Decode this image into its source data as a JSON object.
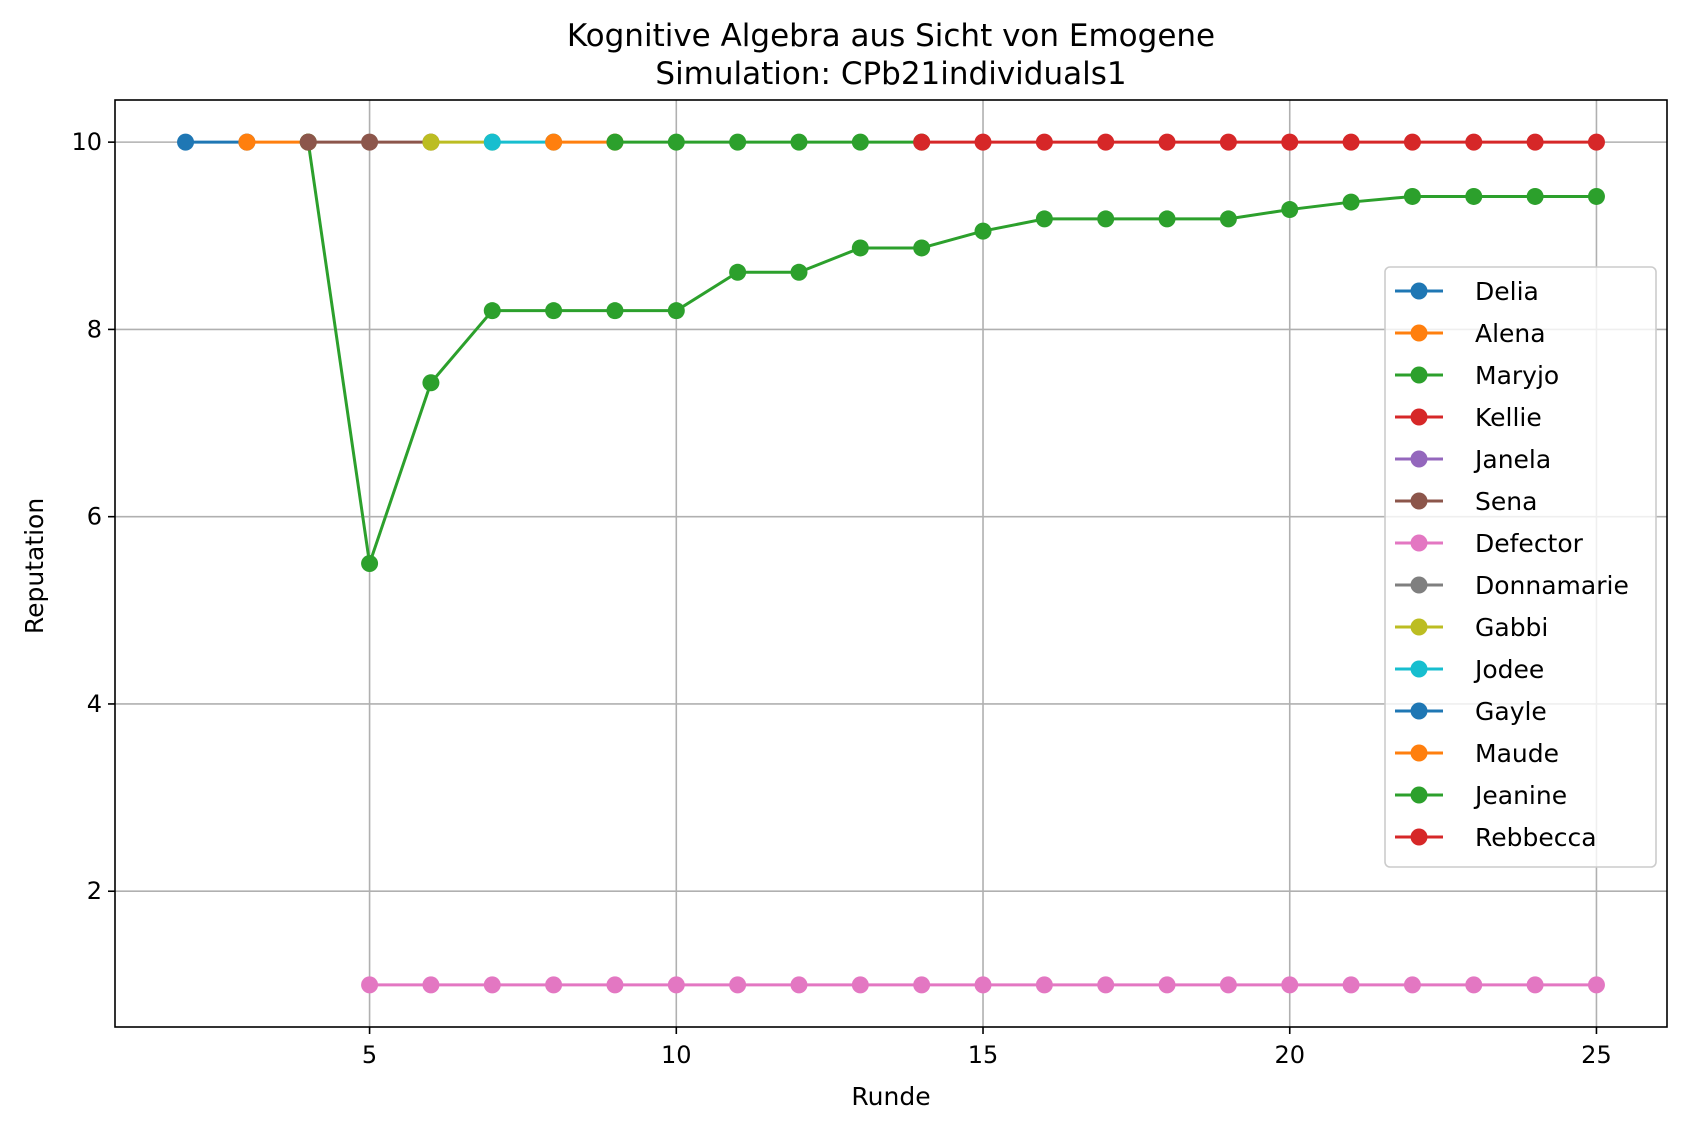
{
  "chart_data": {
    "type": "line",
    "title": "Kognitive Algebra aus Sicht von Emogene",
    "subtitle": "Simulation: CPb21individuals1",
    "xlabel": "Runde",
    "ylabel": "Reputation",
    "xlim": [
      0.85,
      26.15
    ],
    "ylim": [
      0.55,
      10.45
    ],
    "xticks": [
      5,
      10,
      15,
      20,
      25
    ],
    "yticks": [
      2,
      4,
      6,
      8,
      10
    ],
    "grid": true,
    "legend_position": "center-right",
    "series": [
      {
        "name": "Delia",
        "color": "#1f77b4",
        "x": [
          2,
          3
        ],
        "y": [
          10,
          10
        ]
      },
      {
        "name": "Alena",
        "color": "#ff7f0e",
        "x": [
          3,
          4
        ],
        "y": [
          10,
          10
        ]
      },
      {
        "name": "Maryjo",
        "color": "#2ca02c",
        "x": [
          4,
          5,
          6,
          7,
          8,
          9,
          10,
          11,
          12,
          13,
          14,
          15,
          16,
          17,
          18,
          19,
          20,
          21,
          22,
          23,
          24,
          25
        ],
        "y": [
          10,
          5.5,
          7.43,
          8.2,
          8.2,
          8.2,
          8.2,
          8.61,
          8.61,
          8.87,
          8.87,
          9.05,
          9.18,
          9.18,
          9.18,
          9.18,
          9.28,
          9.36,
          9.42,
          9.42,
          9.42,
          9.42
        ]
      },
      {
        "name": "Kellie",
        "color": "#d62728",
        "x": [],
        "y": []
      },
      {
        "name": "Janela",
        "color": "#9467bd",
        "x": [],
        "y": []
      },
      {
        "name": "Sena",
        "color": "#8c564b",
        "x": [
          4,
          5,
          6
        ],
        "y": [
          10,
          10,
          10
        ]
      },
      {
        "name": "Defector",
        "color": "#e377c2",
        "x": [
          5,
          6,
          7,
          8,
          9,
          10,
          11,
          12,
          13,
          14,
          15,
          16,
          17,
          18,
          19,
          20,
          21,
          22,
          23,
          24,
          25
        ],
        "y": [
          1,
          1,
          1,
          1,
          1,
          1,
          1,
          1,
          1,
          1,
          1,
          1,
          1,
          1,
          1,
          1,
          1,
          1,
          1,
          1,
          1
        ]
      },
      {
        "name": "Donnamarie",
        "color": "#7f7f7f",
        "x": [],
        "y": []
      },
      {
        "name": "Gabbi",
        "color": "#bcbd22",
        "x": [
          6,
          7
        ],
        "y": [
          10,
          10
        ]
      },
      {
        "name": "Jodee",
        "color": "#17becf",
        "x": [
          7,
          8
        ],
        "y": [
          10,
          10
        ]
      },
      {
        "name": "Gayle",
        "color": "#1f77b4",
        "x": [],
        "y": []
      },
      {
        "name": "Maude",
        "color": "#ff7f0e",
        "x": [
          8,
          9
        ],
        "y": [
          10,
          10
        ]
      },
      {
        "name": "Jeanine",
        "color": "#2ca02c",
        "x": [
          9,
          10,
          11,
          12,
          13,
          14
        ],
        "y": [
          10,
          10,
          10,
          10,
          10,
          10
        ]
      },
      {
        "name": "Rebbecca",
        "color": "#d62728",
        "x": [
          14,
          15,
          16,
          17,
          18,
          19,
          20,
          21,
          22,
          23,
          24,
          25
        ],
        "y": [
          10,
          10,
          10,
          10,
          10,
          10,
          10,
          10,
          10,
          10,
          10,
          10
        ]
      }
    ]
  }
}
